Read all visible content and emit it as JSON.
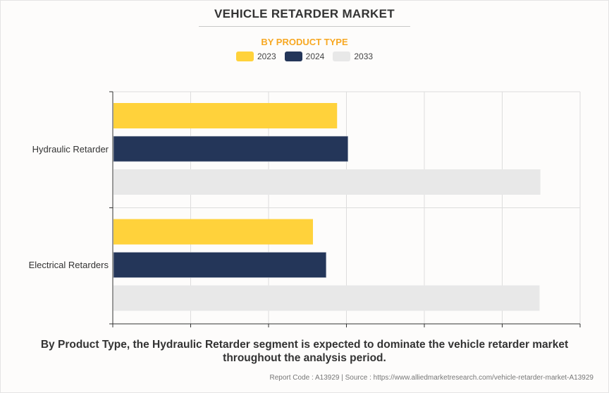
{
  "chart_data": {
    "type": "bar",
    "orientation": "horizontal",
    "title": "VEHICLE RETARDER MARKET",
    "subtitle": "BY PRODUCT TYPE",
    "categories": [
      "Hydraulic Retarder",
      "Electrical Retarders"
    ],
    "series": [
      {
        "name": "2023",
        "color": "#ffd23b",
        "values": [
          2.88,
          2.57
        ]
      },
      {
        "name": "2024",
        "color": "#243659",
        "values": [
          3.02,
          2.74
        ]
      },
      {
        "name": "2033",
        "color": "#e8e8e8",
        "values": [
          5.49,
          5.48
        ]
      }
    ],
    "xlim": [
      0,
      6
    ],
    "x_tick_count": 7,
    "grid": true,
    "legend_position": "top-center",
    "xlabel": "",
    "ylabel": ""
  },
  "caption": "By Product Type, the Hydraulic Retarder segment is expected to dominate the vehicle retarder market throughout the analysis period.",
  "footer": "Report Code : A13929  |  Source : https://www.alliedmarketresearch.com/vehicle-retarder-market-A13929"
}
